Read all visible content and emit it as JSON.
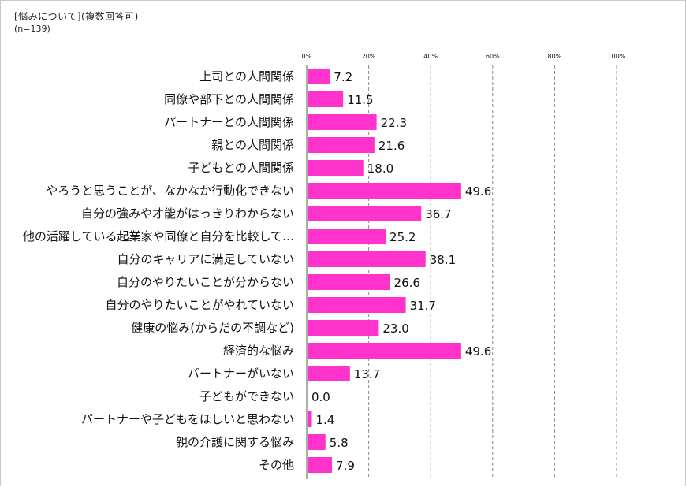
{
  "chart_data": {
    "type": "bar",
    "orientation": "horizontal",
    "title": "[悩みについて](複数回答可)",
    "subtitle": "(n=139)",
    "xlim": [
      0,
      100
    ],
    "x_ticks": [
      "0%",
      "20%",
      "40%",
      "60%",
      "80%",
      "100%"
    ],
    "bar_color": "#ff33cc",
    "categories": [
      "上司との人間関係",
      "同僚や部下との人間関係",
      "パートナーとの人間関係",
      "親との人間関係",
      "子どもとの人間関係",
      "やろうと思うことが、なかなか行動化できない",
      "自分の強みや才能がはっきりわからない",
      "他の活躍している起業家や同僚と自分を比較して…",
      "自分のキャリアに満足していない",
      "自分のやりたいことが分からない",
      "自分のやりたいことがやれていない",
      "健康の悩み(からだの不調など)",
      "経済的な悩み",
      "パートナーがいない",
      "子どもができない",
      "パートナーや子どもをほしいと思わない",
      "親の介護に関する悩み",
      "その他"
    ],
    "values": [
      7.2,
      11.5,
      22.3,
      21.6,
      18.0,
      49.6,
      36.7,
      25.2,
      38.1,
      26.6,
      31.7,
      23.0,
      49.6,
      13.7,
      0.0,
      1.4,
      5.8,
      7.9
    ],
    "value_labels": [
      "7.2",
      "11.5",
      "22.3",
      "21.6",
      "18.0",
      "49.6",
      "36.7",
      "25.2",
      "38.1",
      "26.6",
      "31.7",
      "23.0",
      "49.6",
      "13.7",
      "0.0",
      "1.4",
      "5.8",
      "7.9"
    ]
  }
}
